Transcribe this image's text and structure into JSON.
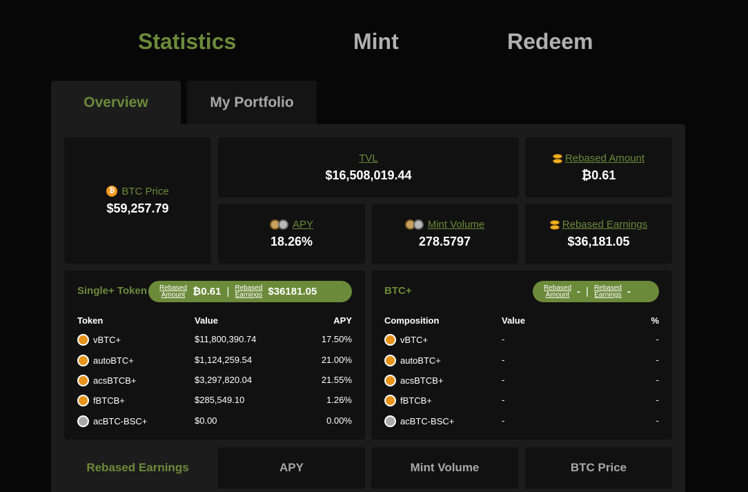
{
  "nav": {
    "statistics": "Statistics",
    "mint": "Mint",
    "redeem": "Redeem"
  },
  "tabs": {
    "overview": "Overview",
    "portfolio": "My Portfolio"
  },
  "stats": {
    "btc_price": {
      "label": "BTC Price",
      "value": "$59,257.79"
    },
    "tvl": {
      "label": "TVL",
      "value": "$16,508,019.44"
    },
    "rebased_amount": {
      "label": "Rebased Amount",
      "value": "₿0.61"
    },
    "apy": {
      "label": "APY",
      "value": "18.26%"
    },
    "mint_volume": {
      "label": "Mint Volume",
      "value": "278.5797"
    },
    "rebased_earnings": {
      "label": "Rebased Earnings",
      "value": "$36,181.05"
    }
  },
  "single": {
    "title": "Single+ Token",
    "pill": {
      "amount_label_1": "Rebased",
      "amount_label_2": "Amount",
      "amount_value": "₿0.61",
      "sep": "|",
      "earnings_label_1": "Rebased",
      "earnings_label_2": "Earnings",
      "earnings_value": "$36181.05"
    },
    "headers": {
      "token": "Token",
      "value": "Value",
      "apy": "APY"
    },
    "rows": [
      {
        "token": "vBTC+",
        "value": "$11,800,390.74",
        "apy": "17.50%"
      },
      {
        "token": "autoBTC+",
        "value": "$1,124,259.54",
        "apy": "21.00%"
      },
      {
        "token": "acsBTCB+",
        "value": "$3,297,820.04",
        "apy": "21.55%"
      },
      {
        "token": "fBTCB+",
        "value": "$285,549.10",
        "apy": "1.26%"
      },
      {
        "token": "acBTC-BSC+",
        "value": "$0.00",
        "apy": "0.00%"
      }
    ]
  },
  "btcplus": {
    "title": "BTC+",
    "pill": {
      "amount_label_1": "Rebased",
      "amount_label_2": "Amount",
      "amount_value": "-",
      "sep": "|",
      "earnings_label_1": "Rebased",
      "earnings_label_2": "Earnings",
      "earnings_value": "-"
    },
    "headers": {
      "composition": "Composition",
      "value": "Value",
      "pct": "%"
    },
    "rows": [
      {
        "token": "vBTC+",
        "value": "-",
        "pct": "-"
      },
      {
        "token": "autoBTC+",
        "value": "-",
        "pct": "-"
      },
      {
        "token": "acsBTCB+",
        "value": "-",
        "pct": "-"
      },
      {
        "token": "fBTCB+",
        "value": "-",
        "pct": "-"
      },
      {
        "token": "acBTC-BSC+",
        "value": "-",
        "pct": "-"
      }
    ]
  },
  "bottom_tabs": [
    "Rebased Earnings",
    "APY",
    "Mint Volume",
    "BTC Price"
  ],
  "colors": {
    "accent": "#6b8a3a",
    "background": "#070707",
    "panel": "#1c1c1c",
    "card": "#111111"
  }
}
